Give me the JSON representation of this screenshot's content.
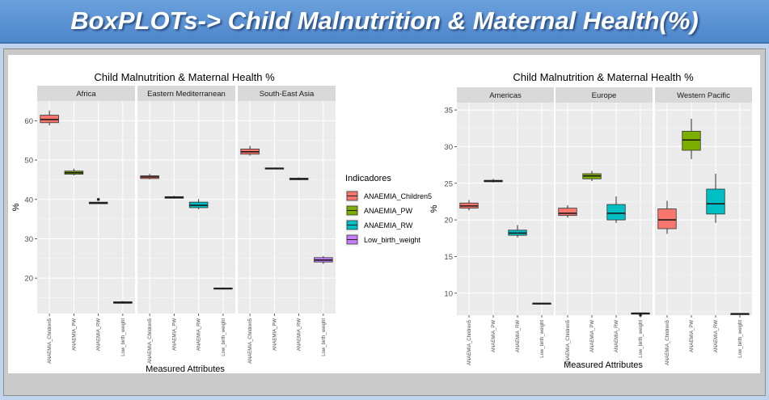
{
  "banner": {
    "title": "BoxPLOTs-> Child Malnutrition & Maternal Health(%)"
  },
  "legend": {
    "title": "Indicadores",
    "items": [
      {
        "label": "ANAEMIA_Children5",
        "color": "#F8766D"
      },
      {
        "label": "ANAEMIA_PW",
        "color": "#7CAE00"
      },
      {
        "label": "ANAEMIA_RW",
        "color": "#00BFC4"
      },
      {
        "label": "Low_birth_weight",
        "color": "#C77CFF"
      }
    ]
  },
  "chart_data": [
    {
      "type": "box",
      "title": "Child Malnutrition & Maternal Health %",
      "xlabel": "Measured Attributes",
      "ylabel": "%",
      "ylim": [
        11,
        65
      ],
      "yticks": [
        20,
        30,
        40,
        50,
        60
      ],
      "categories": [
        "ANAEMIA_Children5",
        "ANAEMIA_PW",
        "ANAEMIA_RW",
        "Low_birth_weight"
      ],
      "tick_labels": [
        "ANAEMIA_Children5",
        "ANAEMIA_PW",
        "ANAEMIA_RW",
        "Low_birth_weight"
      ],
      "facets": [
        {
          "name": "Africa",
          "boxes": [
            {
              "min": 58.8,
              "q1": 59.5,
              "median": 60.3,
              "q3": 61.4,
              "max": 62.6,
              "outliers": []
            },
            {
              "min": 46.1,
              "q1": 46.4,
              "median": 46.8,
              "q3": 47.2,
              "max": 47.8,
              "outliers": []
            },
            {
              "min": 38.9,
              "q1": 38.9,
              "median": 39.1,
              "q3": 39.3,
              "max": 39.4,
              "outliers": [
                40.0
              ]
            },
            {
              "min": 13.5,
              "q1": 13.6,
              "median": 13.8,
              "q3": 14.0,
              "max": 14.2,
              "outliers": []
            }
          ]
        },
        {
          "name": "Eastern Mediterranean",
          "boxes": [
            {
              "min": 45.1,
              "q1": 45.3,
              "median": 45.7,
              "q3": 46.0,
              "max": 46.5,
              "outliers": []
            },
            {
              "min": 40.2,
              "q1": 40.3,
              "median": 40.5,
              "q3": 40.7,
              "max": 40.9,
              "outliers": []
            },
            {
              "min": 37.5,
              "q1": 37.9,
              "median": 38.5,
              "q3": 39.3,
              "max": 40.1,
              "outliers": []
            },
            {
              "min": 17.1,
              "q1": 17.2,
              "median": 17.4,
              "q3": 17.5,
              "max": 17.6,
              "outliers": []
            }
          ]
        },
        {
          "name": "South-East Asia",
          "boxes": [
            {
              "min": 51.1,
              "q1": 51.5,
              "median": 52.1,
              "q3": 52.8,
              "max": 53.6,
              "outliers": []
            },
            {
              "min": 47.7,
              "q1": 47.8,
              "median": 47.9,
              "q3": 48.0,
              "max": 48.1,
              "outliers": []
            },
            {
              "min": 44.9,
              "q1": 45.0,
              "median": 45.2,
              "q3": 45.4,
              "max": 45.6,
              "outliers": []
            },
            {
              "min": 23.6,
              "q1": 24.1,
              "median": 24.6,
              "q3": 25.2,
              "max": 25.6,
              "outliers": []
            }
          ]
        }
      ]
    },
    {
      "type": "box",
      "title": "Child Malnutrition & Maternal Health %",
      "xlabel": "Measured Attributes",
      "ylabel": "%",
      "ylim": [
        7,
        36
      ],
      "yticks": [
        10,
        15,
        20,
        25,
        30,
        35
      ],
      "categories": [
        "ANAEMIA_Children5",
        "ANAEMIA_PW",
        "ANAEMIA_RW",
        "Low_birth_weight"
      ],
      "tick_labels": [
        "ANAEMIA_Children5",
        "ANAEMIA_PW",
        "ANAEMIA_RW",
        "Low_birth_weight"
      ],
      "facets": [
        {
          "name": "Americas",
          "boxes": [
            {
              "min": 21.3,
              "q1": 21.6,
              "median": 21.9,
              "q3": 22.3,
              "max": 22.7,
              "outliers": []
            },
            {
              "min": 25.1,
              "q1": 25.2,
              "median": 25.3,
              "q3": 25.4,
              "max": 25.6,
              "outliers": []
            },
            {
              "min": 17.6,
              "q1": 17.9,
              "median": 18.2,
              "q3": 18.6,
              "max": 19.3,
              "outliers": []
            },
            {
              "min": 8.5,
              "q1": 8.55,
              "median": 8.6,
              "q3": 8.65,
              "max": 8.7,
              "outliers": []
            }
          ]
        },
        {
          "name": "Europe",
          "boxes": [
            {
              "min": 20.3,
              "q1": 20.6,
              "median": 20.9,
              "q3": 21.6,
              "max": 22.0,
              "outliers": []
            },
            {
              "min": 25.3,
              "q1": 25.6,
              "median": 26.0,
              "q3": 26.3,
              "max": 26.7,
              "outliers": []
            },
            {
              "min": 19.6,
              "q1": 20.0,
              "median": 20.9,
              "q3": 22.1,
              "max": 23.2,
              "outliers": []
            },
            {
              "min": 7.15,
              "q1": 7.2,
              "median": 7.25,
              "q3": 7.3,
              "max": 7.35,
              "outliers": [
                7.0
              ]
            }
          ]
        },
        {
          "name": "Western Pacific",
          "boxes": [
            {
              "min": 18.1,
              "q1": 18.8,
              "median": 20.0,
              "q3": 21.5,
              "max": 22.6,
              "outliers": []
            },
            {
              "min": 28.3,
              "q1": 29.5,
              "median": 30.9,
              "q3": 32.1,
              "max": 33.8,
              "outliers": []
            },
            {
              "min": 19.6,
              "q1": 20.8,
              "median": 22.2,
              "q3": 24.2,
              "max": 26.3,
              "outliers": []
            },
            {
              "min": 7.15,
              "q1": 7.18,
              "median": 7.2,
              "q3": 7.22,
              "max": 7.25,
              "outliers": []
            }
          ]
        }
      ]
    }
  ]
}
